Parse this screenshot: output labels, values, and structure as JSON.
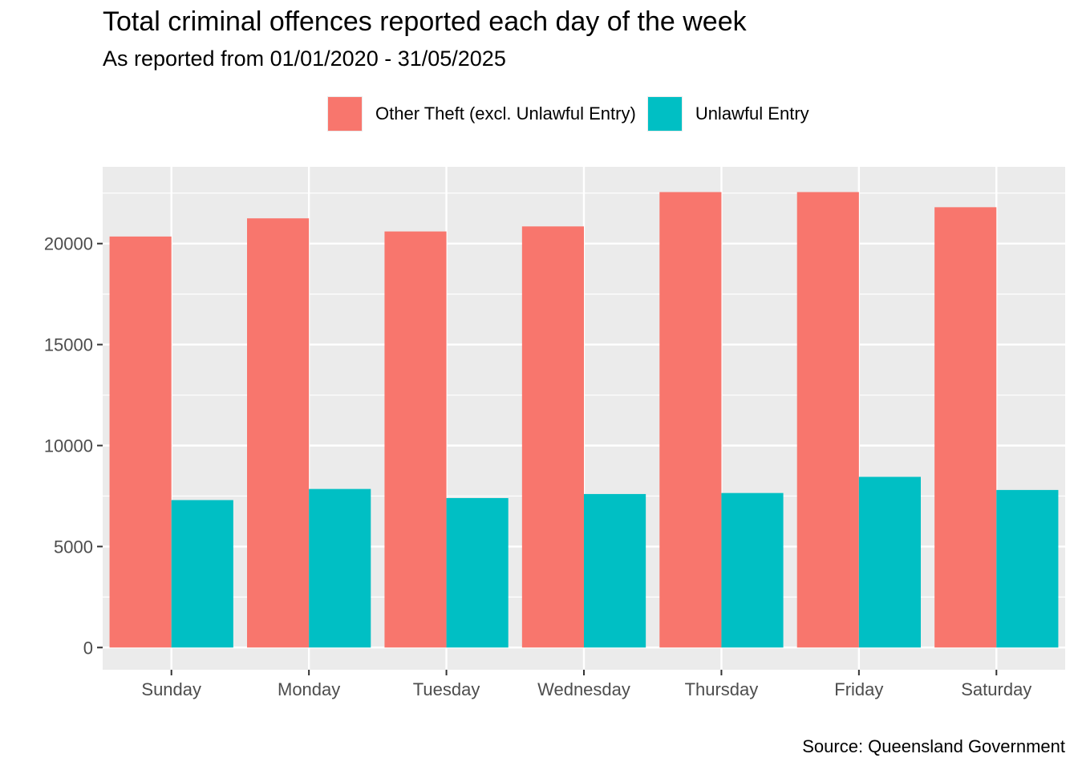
{
  "chart_data": {
    "type": "bar",
    "title": "Total criminal offences reported each day of the week",
    "subtitle": "As reported from 01/01/2020 - 31/05/2025",
    "caption": "Source: Queensland Government",
    "xlabel": "",
    "ylabel": "",
    "categories": [
      "Sunday",
      "Monday",
      "Tuesday",
      "Wednesday",
      "Thursday",
      "Friday",
      "Saturday"
    ],
    "series": [
      {
        "name": "Other Theft (excl. Unlawful Entry)",
        "color": "#F8766D",
        "values": [
          20350,
          21250,
          20600,
          20850,
          22550,
          22550,
          21800
        ]
      },
      {
        "name": "Unlawful Entry",
        "color": "#00BFC4",
        "values": [
          7300,
          7850,
          7400,
          7600,
          7650,
          8450,
          7800
        ]
      }
    ],
    "ylim": [
      -1100,
      23800
    ],
    "yticks": [
      0,
      5000,
      10000,
      15000,
      20000
    ],
    "grid": true,
    "legend_position": "top"
  }
}
